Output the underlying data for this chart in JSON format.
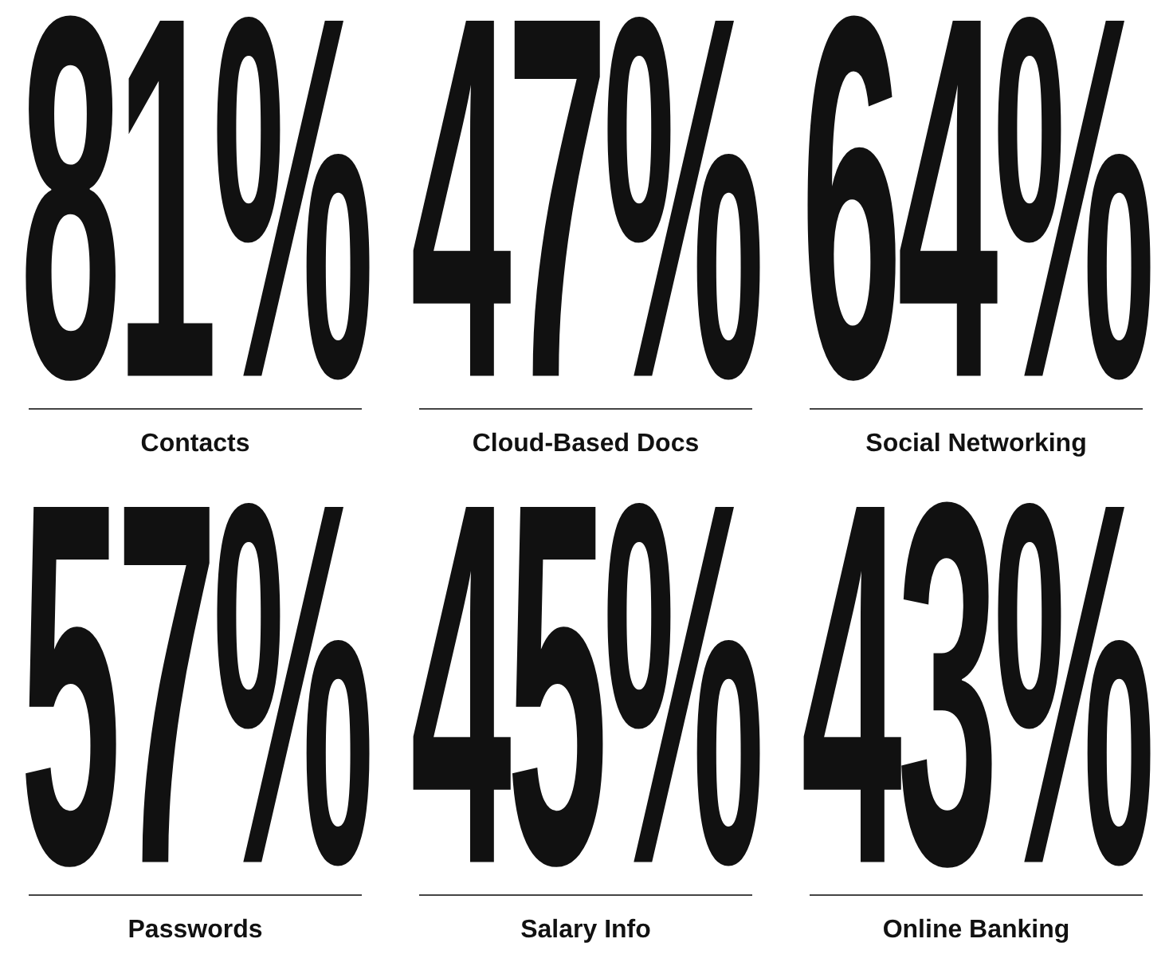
{
  "chart_data": {
    "type": "other",
    "categories": [
      "Contacts",
      "Cloud-Based Docs",
      "Social Networking",
      "Passwords",
      "Salary Info",
      "Online Banking"
    ],
    "values": [
      81,
      47,
      64,
      57,
      45,
      43
    ],
    "value_labels": [
      "81%",
      "47%",
      "64%",
      "57%",
      "45%",
      "43%"
    ],
    "data_labels": true
  }
}
